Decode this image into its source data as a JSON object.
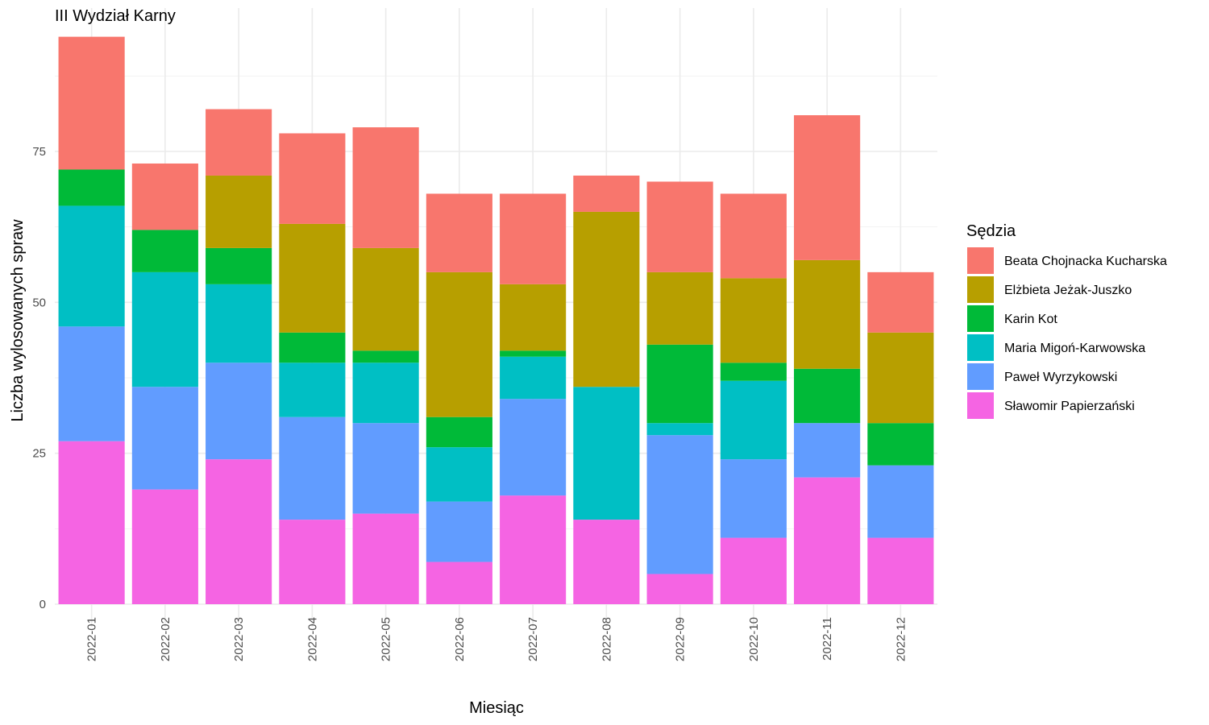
{
  "chart_data": {
    "type": "bar",
    "stacked": true,
    "title": "III Wydział Karny",
    "xlabel": "Miesiąc",
    "ylabel": "Liczba wylosowanych spraw",
    "ylim": [
      0,
      95
    ],
    "yticks": [
      0,
      25,
      50,
      75
    ],
    "grid": true,
    "legend_title": "Sędzia",
    "legend_position": "right",
    "categories": [
      "2022-01",
      "2022-02",
      "2022-03",
      "2022-04",
      "2022-05",
      "2022-06",
      "2022-07",
      "2022-08",
      "2022-09",
      "2022-10",
      "2022-11",
      "2022-12"
    ],
    "series": [
      {
        "name": "Sławomir Papierzański",
        "color": "#F564E3",
        "values": [
          27,
          19,
          24,
          14,
          15,
          7,
          18,
          14,
          5,
          11,
          21,
          11
        ]
      },
      {
        "name": "Paweł Wyrzykowski",
        "color": "#619CFF",
        "values": [
          19,
          17,
          16,
          17,
          15,
          10,
          16,
          0,
          23,
          13,
          9,
          12
        ]
      },
      {
        "name": "Maria Migoń-Karwowska",
        "color": "#00BFC4",
        "values": [
          20,
          19,
          13,
          9,
          10,
          9,
          7,
          22,
          2,
          13,
          0,
          0
        ]
      },
      {
        "name": "Karin Kot",
        "color": "#00BA38",
        "values": [
          6,
          7,
          6,
          5,
          2,
          5,
          1,
          0,
          13,
          3,
          9,
          7
        ]
      },
      {
        "name": "Elżbieta Jeżak-Juszko",
        "color": "#B79F00",
        "values": [
          0,
          0,
          12,
          18,
          17,
          24,
          11,
          29,
          12,
          14,
          18,
          15
        ]
      },
      {
        "name": "Beata Chojnacka Kucharska",
        "color": "#F8766D",
        "values": [
          22,
          11,
          11,
          15,
          20,
          13,
          15,
          6,
          15,
          14,
          24,
          10
        ]
      }
    ],
    "legend_order": [
      "Beata Chojnacka Kucharska",
      "Elżbieta Jeżak-Juszko",
      "Karin Kot",
      "Maria Migoń-Karwowska",
      "Paweł Wyrzykowski",
      "Sławomir Papierzański"
    ]
  }
}
